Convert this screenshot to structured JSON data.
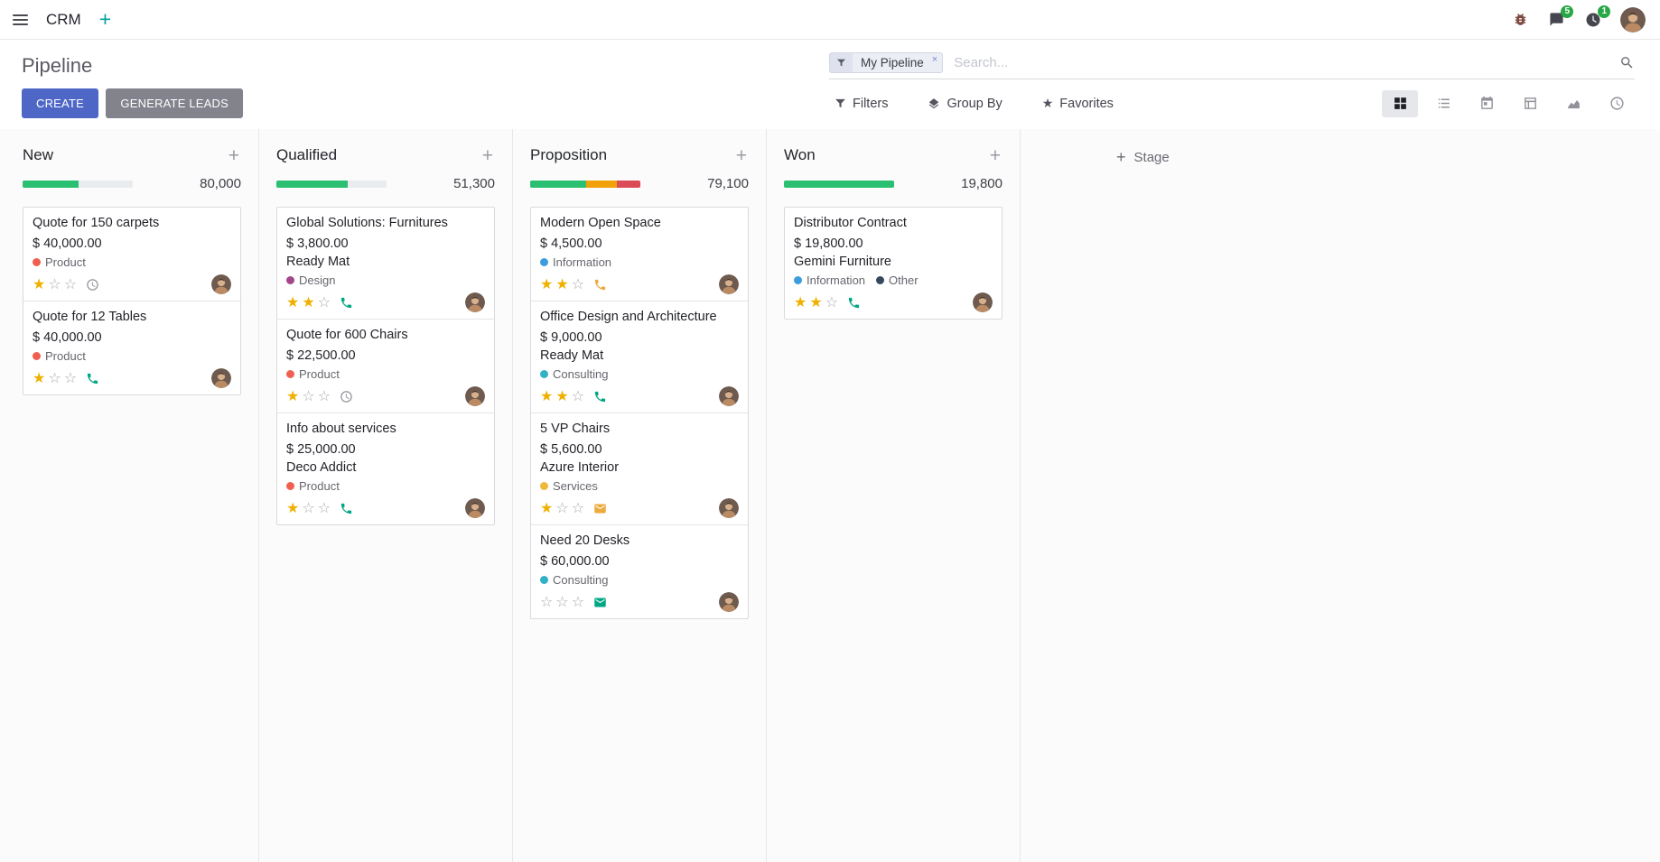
{
  "navbar": {
    "app_name": "CRM",
    "messages_badge": "5",
    "activities_badge": "1"
  },
  "control_panel": {
    "title": "Pipeline",
    "buttons": {
      "create": "CREATE",
      "generate_leads": "GENERATE LEADS"
    },
    "search": {
      "facet": "My Pipeline",
      "placeholder": "Search...",
      "remove": "×"
    },
    "menus": {
      "filters": "Filters",
      "group_by": "Group By",
      "favorites": "Favorites"
    }
  },
  "kanban": {
    "add_stage": "Stage",
    "columns": [
      {
        "name": "New",
        "amount": "80,000",
        "progress": [
          {
            "color": "success",
            "pct": 51
          },
          {
            "color": "muted",
            "pct": 49
          }
        ],
        "cards": [
          {
            "title": "Quote for 150 carpets",
            "amount": "$ 40,000.00",
            "partner": "",
            "tags": [
              {
                "label": "Product",
                "color": "#f06050"
              }
            ],
            "stars": 1,
            "activity": {
              "icon": "clock",
              "color": "#8f8f98"
            }
          },
          {
            "title": "Quote for 12 Tables",
            "amount": "$ 40,000.00",
            "partner": "",
            "tags": [
              {
                "label": "Product",
                "color": "#f06050"
              }
            ],
            "stars": 1,
            "activity": {
              "icon": "phone",
              "color": "#00a784"
            }
          }
        ]
      },
      {
        "name": "Qualified",
        "amount": "51,300",
        "progress": [
          {
            "color": "success",
            "pct": 65
          },
          {
            "color": "muted",
            "pct": 35
          }
        ],
        "cards": [
          {
            "title": "Global Solutions: Furnitures",
            "amount": "$ 3,800.00",
            "partner": "Ready Mat",
            "tags": [
              {
                "label": "Design",
                "color": "#a24689"
              }
            ],
            "stars": 2,
            "activity": {
              "icon": "phone",
              "color": "#00a784"
            }
          },
          {
            "title": "Quote for 600 Chairs",
            "amount": "$ 22,500.00",
            "partner": "",
            "tags": [
              {
                "label": "Product",
                "color": "#f06050"
              }
            ],
            "stars": 1,
            "activity": {
              "icon": "clock",
              "color": "#8f8f98"
            }
          },
          {
            "title": "Info about services",
            "amount": "$ 25,000.00",
            "partner": "Deco Addict",
            "tags": [
              {
                "label": "Product",
                "color": "#f06050"
              }
            ],
            "stars": 1,
            "activity": {
              "icon": "phone",
              "color": "#00a784"
            }
          }
        ]
      },
      {
        "name": "Proposition",
        "amount": "79,100",
        "progress": [
          {
            "color": "success",
            "pct": 51
          },
          {
            "color": "warning",
            "pct": 28
          },
          {
            "color": "danger",
            "pct": 21
          }
        ],
        "cards": [
          {
            "title": "Modern Open Space",
            "amount": "$ 4,500.00",
            "partner": "",
            "tags": [
              {
                "label": "Information",
                "color": "#3b9ddd"
              }
            ],
            "stars": 2,
            "activity": {
              "icon": "phone",
              "color": "#edab3e"
            }
          },
          {
            "title": "Office Design and Architecture",
            "amount": "$ 9,000.00",
            "partner": "Ready Mat",
            "tags": [
              {
                "label": "Consulting",
                "color": "#31b0c6"
              }
            ],
            "stars": 2,
            "activity": {
              "icon": "phone",
              "color": "#00a784"
            }
          },
          {
            "title": "5 VP Chairs",
            "amount": "$ 5,600.00",
            "partner": "Azure Interior",
            "tags": [
              {
                "label": "Services",
                "color": "#efb839"
              }
            ],
            "stars": 1,
            "activity": {
              "icon": "envelope",
              "color": "#edab3e"
            }
          },
          {
            "title": "Need 20 Desks",
            "amount": "$ 60,000.00",
            "partner": "",
            "tags": [
              {
                "label": "Consulting",
                "color": "#31b0c6"
              }
            ],
            "stars": 0,
            "activity": {
              "icon": "envelope",
              "color": "#00a784"
            }
          }
        ]
      },
      {
        "name": "Won",
        "amount": "19,800",
        "progress": [
          {
            "color": "success",
            "pct": 100
          }
        ],
        "cards": [
          {
            "title": "Distributor Contract",
            "amount": "$ 19,800.00",
            "partner": "Gemini Furniture",
            "tags": [
              {
                "label": "Information",
                "color": "#3b9ddd"
              },
              {
                "label": "Other",
                "color": "#34495e"
              }
            ],
            "stars": 2,
            "activity": {
              "icon": "phone",
              "color": "#00a784"
            }
          }
        ]
      }
    ]
  },
  "colors": {
    "primary": "#4e67c7",
    "secondary": "#83838e",
    "success": "#2abf71",
    "warning": "#f1a208",
    "danger": "#dc4a57",
    "muted": "#e9ecef",
    "badge": "#28a745",
    "star": "#efb000"
  }
}
